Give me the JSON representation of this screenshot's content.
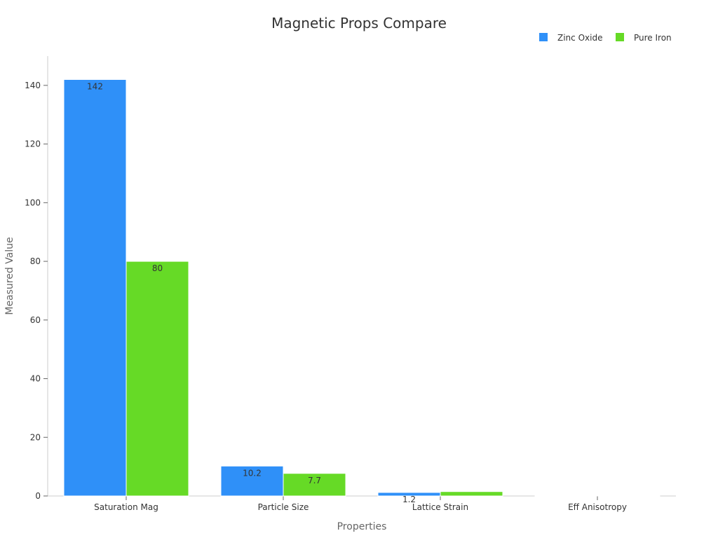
{
  "chart_data": {
    "type": "bar",
    "title": "Magnetic Props Compare",
    "xlabel": "Properties",
    "ylabel": "Measured Value",
    "categories": [
      "Saturation Mag",
      "Particle Size",
      "Lattice Strain",
      "Eff Anisotropy"
    ],
    "series": [
      {
        "name": "Zinc Oxide",
        "color": "#2f90f8",
        "values": [
          142,
          10.2,
          1.2,
          0.05
        ]
      },
      {
        "name": "Pure Iron",
        "color": "#66da26",
        "values": [
          80,
          7.7,
          1.5,
          0.04
        ]
      }
    ],
    "data_labels": [
      [
        "142",
        "10.2",
        "1.2",
        ""
      ],
      [
        "80",
        "7.7",
        "",
        ""
      ]
    ],
    "ylim": [
      0,
      150
    ],
    "yticks": [
      0,
      20,
      40,
      60,
      80,
      100,
      120,
      140
    ],
    "legend_position": "top-right",
    "grid": false
  }
}
